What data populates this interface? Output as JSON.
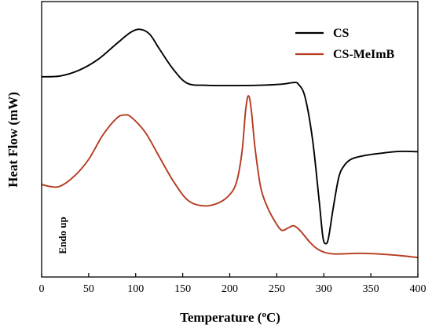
{
  "chart_data": {
    "type": "line",
    "xlabel": "Temperature (",
    "xlabel_unit_sup": "o",
    "xlabel_unit_end": "C)",
    "ylabel": "Heat Flow (mW)",
    "xlim": [
      0,
      400
    ],
    "ylim": [
      0,
      100
    ],
    "x_ticks": [
      0,
      50,
      100,
      150,
      200,
      250,
      300,
      350,
      400
    ],
    "x_tick_labels": [
      "0",
      "50",
      "100",
      "150",
      "200",
      "250",
      "300",
      "350",
      "400"
    ],
    "y_tick_labels_shown": false,
    "grid": false,
    "legend_position": "top-right",
    "annotation": "Endo up",
    "series": [
      {
        "name": "CS",
        "color": "#000000",
        "points": [
          [
            0,
            72.7
          ],
          [
            20,
            73.0
          ],
          [
            40,
            75.1
          ],
          [
            60,
            79.0
          ],
          [
            80,
            84.8
          ],
          [
            95,
            88.9
          ],
          [
            105,
            89.9
          ],
          [
            115,
            88.1
          ],
          [
            125,
            82.9
          ],
          [
            140,
            75.4
          ],
          [
            155,
            70.3
          ],
          [
            175,
            69.6
          ],
          [
            200,
            69.5
          ],
          [
            230,
            69.6
          ],
          [
            255,
            70.0
          ],
          [
            268,
            70.6
          ],
          [
            273,
            70.0
          ],
          [
            280,
            65.4
          ],
          [
            288,
            50.0
          ],
          [
            295,
            27.9
          ],
          [
            299,
            14.6
          ],
          [
            302,
            12.1
          ],
          [
            305,
            14.2
          ],
          [
            310,
            25.0
          ],
          [
            316,
            36.3
          ],
          [
            322,
            40.6
          ],
          [
            330,
            42.9
          ],
          [
            345,
            44.2
          ],
          [
            360,
            44.9
          ],
          [
            380,
            45.6
          ],
          [
            400,
            45.5
          ]
        ]
      },
      {
        "name": "CS-MeImB",
        "color": "#b53a1e",
        "points": [
          [
            0,
            33.6
          ],
          [
            10,
            32.8
          ],
          [
            20,
            33.0
          ],
          [
            35,
            36.7
          ],
          [
            50,
            42.7
          ],
          [
            65,
            51.5
          ],
          [
            80,
            57.7
          ],
          [
            88,
            58.8
          ],
          [
            95,
            58.1
          ],
          [
            110,
            52.6
          ],
          [
            125,
            43.7
          ],
          [
            140,
            34.8
          ],
          [
            155,
            28.0
          ],
          [
            170,
            25.9
          ],
          [
            185,
            26.5
          ],
          [
            198,
            29.2
          ],
          [
            207,
            34.2
          ],
          [
            213,
            45.4
          ],
          [
            217,
            60.9
          ],
          [
            220,
            65.8
          ],
          [
            223,
            60.4
          ],
          [
            227,
            46.5
          ],
          [
            233,
            32.4
          ],
          [
            240,
            25.4
          ],
          [
            248,
            20.2
          ],
          [
            255,
            17.0
          ],
          [
            262,
            17.8
          ],
          [
            268,
            18.6
          ],
          [
            275,
            16.8
          ],
          [
            285,
            12.7
          ],
          [
            295,
            9.8
          ],
          [
            310,
            8.4
          ],
          [
            340,
            8.6
          ],
          [
            370,
            8.1
          ],
          [
            400,
            7.1
          ]
        ]
      }
    ]
  }
}
